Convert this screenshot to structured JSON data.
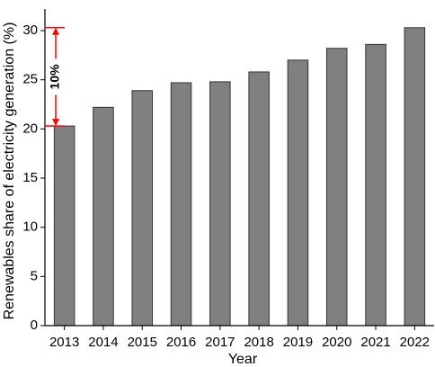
{
  "chart_data": {
    "type": "bar",
    "x_label": "Year",
    "y_label": "Renewables share of electricity generation (%)",
    "categories": [
      "2013",
      "2014",
      "2015",
      "2016",
      "2017",
      "2018",
      "2019",
      "2020",
      "2021",
      "2022"
    ],
    "values": [
      20.3,
      22.2,
      23.9,
      24.7,
      24.8,
      25.8,
      27.0,
      28.2,
      28.6,
      30.3
    ],
    "color": "#808080",
    "ylim": [
      0,
      32.2
    ],
    "yticks": [
      0,
      5,
      10,
      15,
      20,
      25,
      30
    ],
    "annotations": [
      {
        "text": "10%",
        "color": "#ff0000"
      }
    ]
  }
}
